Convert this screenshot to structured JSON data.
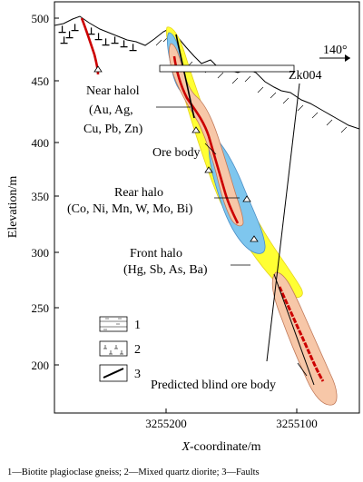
{
  "axes": {
    "y_label": "Elevation/m",
    "x_label_italic": "X",
    "x_label_rest": "-coordinate/m",
    "y_ticks": [
      "500",
      "450",
      "400",
      "350",
      "300",
      "250",
      "200"
    ],
    "x_ticks": [
      "3255200",
      "3255100"
    ]
  },
  "direction": "140°",
  "labels": {
    "drillhole": "Zk004",
    "near_halo_title": "Near halol",
    "near_halo_line1": "(Au, Ag,",
    "near_halo_line2": "Cu, Pb, Zn)",
    "ore_body": "Ore body",
    "rear_halo_title": "Rear halo",
    "rear_halo_elements": "(Co, Ni, Mn, W, Mo, Bi)",
    "front_halo_title": "Front halo",
    "front_halo_elements": "(Hg, Sb, As, Ba)",
    "predicted": "Predicted blind ore body"
  },
  "legend": {
    "items": [
      {
        "number": "1",
        "pattern": "gneiss"
      },
      {
        "number": "2",
        "pattern": "quartz-diorite"
      },
      {
        "number": "3",
        "pattern": "fault"
      }
    ]
  },
  "caption": "1—Biotite plagioclase gneiss; 2—Mixed quartz diorite; 3—Faults",
  "colors": {
    "front_halo": "#ffff33",
    "rear_halo": "#7ec6ee",
    "near_halo": "#f7c7a8",
    "ore_body": "#cc0000"
  }
}
